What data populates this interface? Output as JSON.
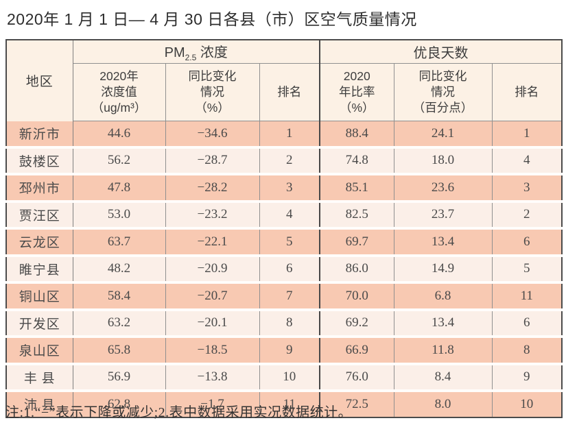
{
  "title": "2020年 1 月 1 日— 4 月 30 日各县（市）区空气质量情况",
  "table": {
    "corner_label": "地区",
    "group1": {
      "main": "PM",
      "sub": "2.5",
      "rest": " 浓度"
    },
    "group2": "优良天数",
    "subheaders": {
      "pm_value": "2020年\n浓度值\n（ug/m³）",
      "pm_change": "同比变化\n情况\n（%）",
      "pm_rank": "排名",
      "good_rate": "2020\n年比率\n（%）",
      "good_change": "同比变化\n情况\n（百分点）",
      "good_rank": "排名"
    },
    "rows": [
      {
        "region": "新沂市",
        "pm_value": "44.6",
        "pm_change": "−34.6",
        "pm_rank": "1",
        "good_rate": "88.4",
        "good_change": "24.1",
        "good_rank": "1"
      },
      {
        "region": "鼓楼区",
        "pm_value": "56.2",
        "pm_change": "−28.7",
        "pm_rank": "2",
        "good_rate": "74.8",
        "good_change": "18.0",
        "good_rank": "4"
      },
      {
        "region": "邳州市",
        "pm_value": "47.8",
        "pm_change": "−28.2",
        "pm_rank": "3",
        "good_rate": "85.1",
        "good_change": "23.6",
        "good_rank": "3"
      },
      {
        "region": "贾汪区",
        "pm_value": "53.0",
        "pm_change": "−23.2",
        "pm_rank": "4",
        "good_rate": "82.5",
        "good_change": "23.7",
        "good_rank": "2"
      },
      {
        "region": "云龙区",
        "pm_value": "63.7",
        "pm_change": "−22.1",
        "pm_rank": "5",
        "good_rate": "69.7",
        "good_change": "13.4",
        "good_rank": "6"
      },
      {
        "region": "睢宁县",
        "pm_value": "48.2",
        "pm_change": "−20.9",
        "pm_rank": "6",
        "good_rate": "86.0",
        "good_change": "14.9",
        "good_rank": "5"
      },
      {
        "region": "铜山区",
        "pm_value": "58.4",
        "pm_change": "−20.7",
        "pm_rank": "7",
        "good_rate": "70.0",
        "good_change": "6.8",
        "good_rank": "11"
      },
      {
        "region": "开发区",
        "pm_value": "63.2",
        "pm_change": "−20.1",
        "pm_rank": "8",
        "good_rate": "69.2",
        "good_change": "13.4",
        "good_rank": "6"
      },
      {
        "region": "泉山区",
        "pm_value": "65.8",
        "pm_change": "−18.5",
        "pm_rank": "9",
        "good_rate": "66.9",
        "good_change": "11.8",
        "good_rank": "8"
      },
      {
        "region": "丰 县",
        "pm_value": "56.9",
        "pm_change": "−13.8",
        "pm_rank": "10",
        "good_rate": "76.0",
        "good_change": "8.4",
        "good_rank": "9"
      },
      {
        "region": "沛 县",
        "pm_value": "62.8",
        "pm_change": "−1.7",
        "pm_rank": "11",
        "good_rate": "72.5",
        "good_change": "8.0",
        "good_rank": "10"
      }
    ]
  },
  "note": "注:1.“−”表示下降或减少;2.表中数据采用实况数据统计。",
  "colors": {
    "row_band_dark": "#f8c9b2",
    "row_band_light": "#fbefe8",
    "header_bg": "#fcf1e5",
    "outer_border": "#4b4b4b",
    "grid_line": "#8f8f8f",
    "text": "#3d3d3d"
  }
}
